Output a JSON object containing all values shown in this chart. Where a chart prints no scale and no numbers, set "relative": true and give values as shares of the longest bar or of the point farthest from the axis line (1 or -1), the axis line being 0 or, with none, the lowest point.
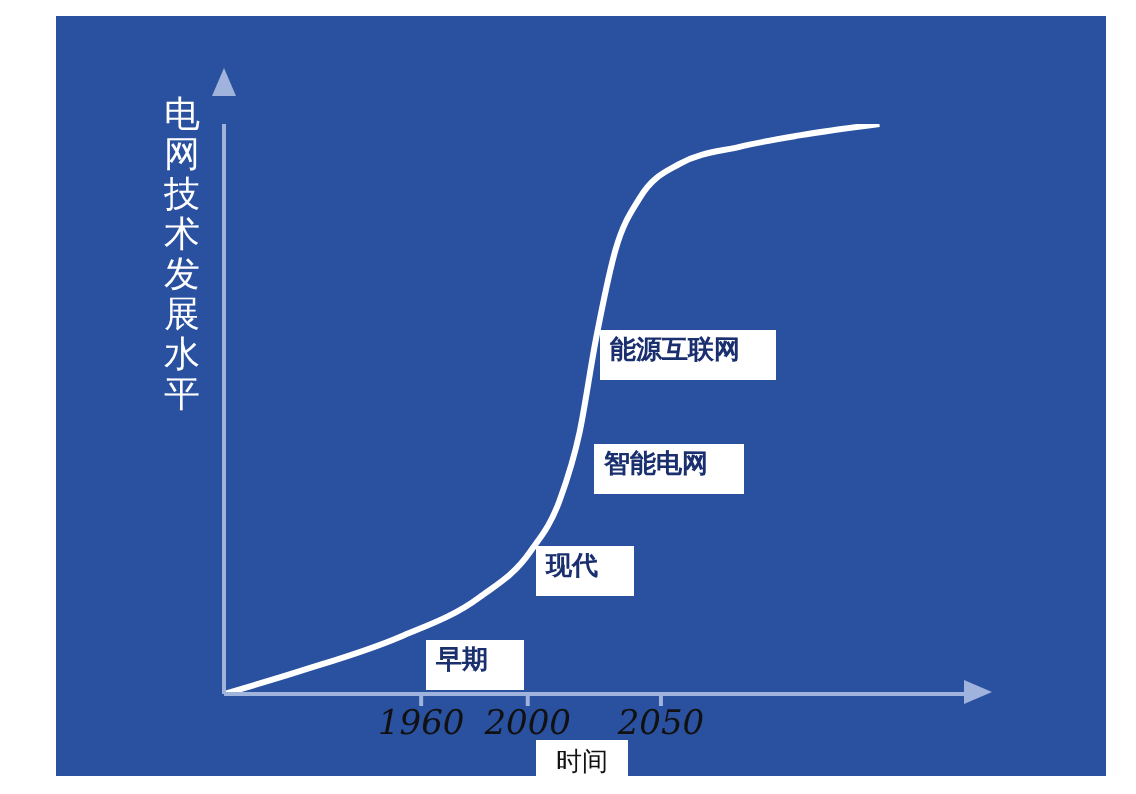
{
  "chart_data": {
    "type": "line",
    "relative": true,
    "ylabel": "电网技术发展水平",
    "xlabel": "时间",
    "x": [
      1886,
      1914.5,
      1952,
      1982,
      2001,
      2012,
      2019.5,
      2025.5,
      2033,
      2042,
      2057,
      2079.5,
      2102,
      2132
    ],
    "xlim": [
      1886,
      2166
    ],
    "xticks": [
      1960,
      2000,
      2050
    ],
    "series": [
      {
        "color": "#ffffff",
        "values": [
          0,
          0.04,
          0.1,
          0.17,
          0.25,
          0.34,
          0.46,
          0.62,
          0.78,
          0.87,
          0.93,
          0.96,
          0.98,
          1
        ]
      }
    ],
    "annotations": [
      "早期",
      "现代",
      "智能电网",
      "能源互联网"
    ],
    "grid": false,
    "legend": false,
    "marker": "none",
    "line_style": "solid"
  }
}
